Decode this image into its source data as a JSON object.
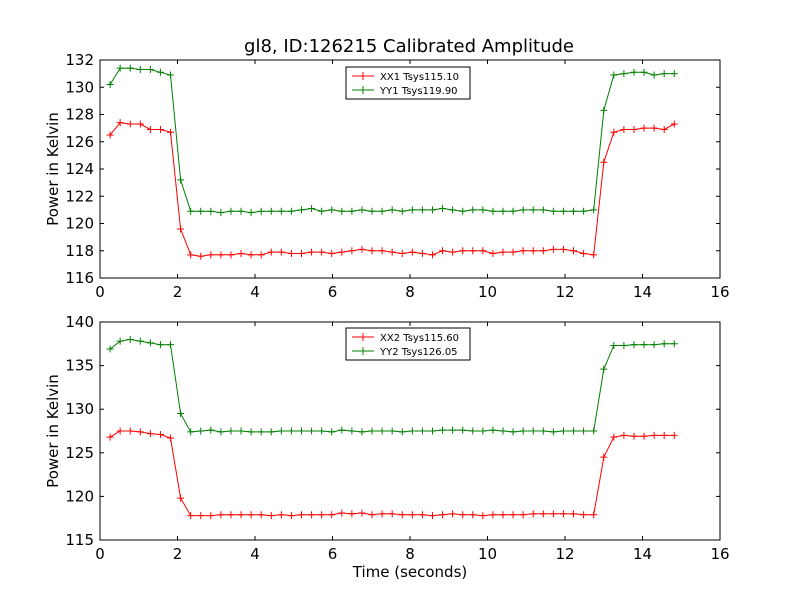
{
  "figure": {
    "title": "gl8, ID:126215 Calibrated Amplitude"
  },
  "chart_data": [
    {
      "type": "line",
      "title": "gl8, ID:126215 Calibrated Amplitude",
      "xlabel": "",
      "ylabel": "Power in Kelvin",
      "xlim": [
        0,
        16
      ],
      "ylim": [
        116,
        132
      ],
      "xticks": [
        0,
        2,
        4,
        6,
        8,
        10,
        12,
        14,
        16
      ],
      "yticks": [
        116,
        118,
        120,
        122,
        124,
        126,
        128,
        130,
        132
      ],
      "grid": false,
      "legend_position": "top-center",
      "x": [
        0.26,
        0.52,
        0.78,
        1.04,
        1.3,
        1.56,
        1.82,
        2.08,
        2.34,
        2.6,
        2.86,
        3.12,
        3.38,
        3.64,
        3.9,
        4.16,
        4.42,
        4.68,
        4.94,
        5.2,
        5.46,
        5.72,
        5.98,
        6.24,
        6.5,
        6.76,
        7.02,
        7.28,
        7.54,
        7.8,
        8.06,
        8.32,
        8.58,
        8.84,
        9.1,
        9.36,
        9.62,
        9.88,
        10.14,
        10.4,
        10.66,
        10.92,
        11.18,
        11.44,
        11.7,
        11.96,
        12.22,
        12.48,
        12.74,
        13.0,
        13.26,
        13.52,
        13.78,
        14.04,
        14.3,
        14.56,
        14.82
      ],
      "series": [
        {
          "name": "XX1 Tsys115.10",
          "color": "#ff0000",
          "values": [
            126.5,
            127.4,
            127.3,
            127.3,
            126.9,
            126.9,
            126.7,
            119.6,
            117.7,
            117.6,
            117.7,
            117.7,
            117.7,
            117.8,
            117.7,
            117.7,
            117.9,
            117.9,
            117.8,
            117.8,
            117.9,
            117.9,
            117.8,
            117.9,
            118.0,
            118.1,
            118.0,
            118.0,
            117.9,
            117.8,
            117.9,
            117.8,
            117.7,
            118.0,
            117.9,
            118.0,
            118.0,
            118.0,
            117.8,
            117.9,
            117.9,
            118.0,
            118.0,
            118.0,
            118.1,
            118.1,
            118.0,
            117.8,
            117.7,
            124.5,
            126.7,
            126.9,
            126.9,
            127.0,
            127.0,
            126.9,
            127.3
          ]
        },
        {
          "name": "YY1 Tsys119.90",
          "color": "#008000",
          "values": [
            130.2,
            131.4,
            131.4,
            131.3,
            131.3,
            131.1,
            130.9,
            123.2,
            120.9,
            120.9,
            120.9,
            120.8,
            120.9,
            120.9,
            120.8,
            120.9,
            120.9,
            120.9,
            120.9,
            121.0,
            121.1,
            120.9,
            121.0,
            120.9,
            120.9,
            121.0,
            120.9,
            120.9,
            121.0,
            120.9,
            121.0,
            121.0,
            121.0,
            121.1,
            121.0,
            120.9,
            121.0,
            121.0,
            120.9,
            120.9,
            120.9,
            121.0,
            121.0,
            121.0,
            120.9,
            120.9,
            120.9,
            120.9,
            121.0,
            128.3,
            130.9,
            131.0,
            131.1,
            131.1,
            130.9,
            131.0,
            131.0
          ]
        }
      ]
    },
    {
      "type": "line",
      "title": "",
      "xlabel": "Time (seconds)",
      "ylabel": "Power in Kelvin",
      "xlim": [
        0,
        16
      ],
      "ylim": [
        115,
        140
      ],
      "xticks": [
        0,
        2,
        4,
        6,
        8,
        10,
        12,
        14,
        16
      ],
      "yticks": [
        115,
        120,
        125,
        130,
        135,
        140
      ],
      "grid": false,
      "legend_position": "top-center",
      "x": [
        0.26,
        0.52,
        0.78,
        1.04,
        1.3,
        1.56,
        1.82,
        2.08,
        2.34,
        2.6,
        2.86,
        3.12,
        3.38,
        3.64,
        3.9,
        4.16,
        4.42,
        4.68,
        4.94,
        5.2,
        5.46,
        5.72,
        5.98,
        6.24,
        6.5,
        6.76,
        7.02,
        7.28,
        7.54,
        7.8,
        8.06,
        8.32,
        8.58,
        8.84,
        9.1,
        9.36,
        9.62,
        9.88,
        10.14,
        10.4,
        10.66,
        10.92,
        11.18,
        11.44,
        11.7,
        11.96,
        12.22,
        12.48,
        12.74,
        13.0,
        13.26,
        13.52,
        13.78,
        14.04,
        14.3,
        14.56,
        14.82
      ],
      "series": [
        {
          "name": "XX2 Tsys115.60",
          "color": "#ff0000",
          "values": [
            126.8,
            127.5,
            127.5,
            127.4,
            127.2,
            127.1,
            126.7,
            119.8,
            117.8,
            117.8,
            117.8,
            117.9,
            117.9,
            117.9,
            117.9,
            117.9,
            117.8,
            117.9,
            117.8,
            117.9,
            117.9,
            117.9,
            117.9,
            118.1,
            118.0,
            118.1,
            117.9,
            118.0,
            118.0,
            117.9,
            117.9,
            117.9,
            117.8,
            117.9,
            118.0,
            117.9,
            117.9,
            117.8,
            117.9,
            117.9,
            117.9,
            117.9,
            118.0,
            118.0,
            118.0,
            118.0,
            118.0,
            117.9,
            117.9,
            124.5,
            126.8,
            127.0,
            126.9,
            126.9,
            127.0,
            127.0,
            127.0
          ]
        },
        {
          "name": "YY2 Tsys126.05",
          "color": "#008000",
          "values": [
            136.9,
            137.8,
            138.0,
            137.8,
            137.6,
            137.4,
            137.4,
            129.5,
            127.4,
            127.5,
            127.6,
            127.4,
            127.5,
            127.5,
            127.4,
            127.4,
            127.4,
            127.5,
            127.5,
            127.5,
            127.5,
            127.5,
            127.4,
            127.6,
            127.5,
            127.4,
            127.5,
            127.5,
            127.5,
            127.4,
            127.5,
            127.5,
            127.5,
            127.6,
            127.6,
            127.6,
            127.5,
            127.5,
            127.6,
            127.5,
            127.4,
            127.5,
            127.5,
            127.5,
            127.4,
            127.5,
            127.5,
            127.5,
            127.5,
            134.6,
            137.3,
            137.3,
            137.4,
            137.4,
            137.4,
            137.5,
            137.5
          ]
        }
      ]
    }
  ]
}
